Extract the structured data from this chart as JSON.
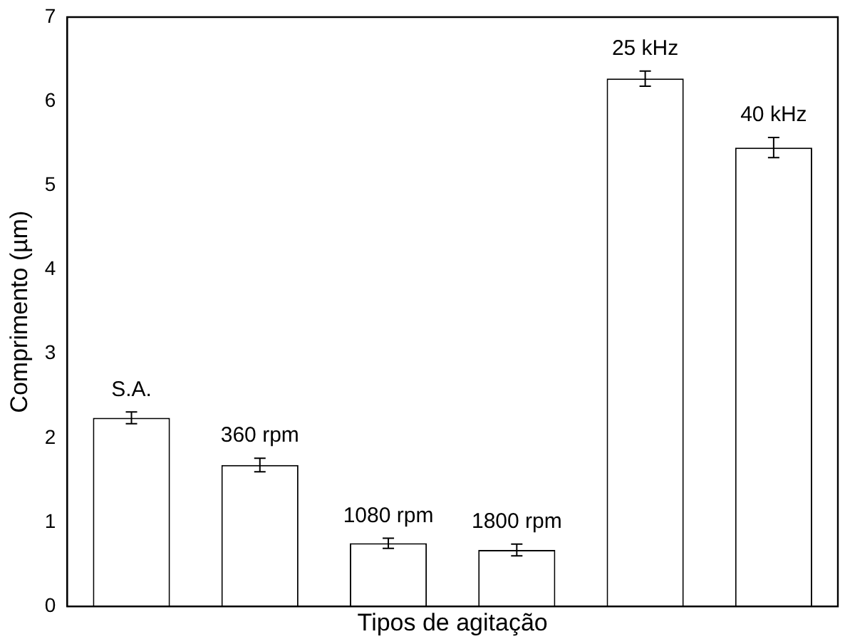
{
  "chart_data": {
    "type": "bar",
    "xlabel": "Tipos de agitação",
    "ylabel": "Comprimento (µm)",
    "categories": [
      "S.A.",
      "360 rpm",
      "1080 rpm",
      "1800 rpm",
      "25 kHz",
      "40 kHz"
    ],
    "values": [
      2.24,
      1.68,
      0.75,
      0.67,
      6.27,
      5.45
    ],
    "errors": [
      0.07,
      0.08,
      0.06,
      0.07,
      0.09,
      0.12
    ],
    "color": "#ffffff",
    "ylim": [
      0,
      7
    ],
    "yticks": [
      0,
      1,
      2,
      3,
      4,
      5,
      6,
      7
    ],
    "tick_labels": "y",
    "grid": false,
    "legend": false
  }
}
